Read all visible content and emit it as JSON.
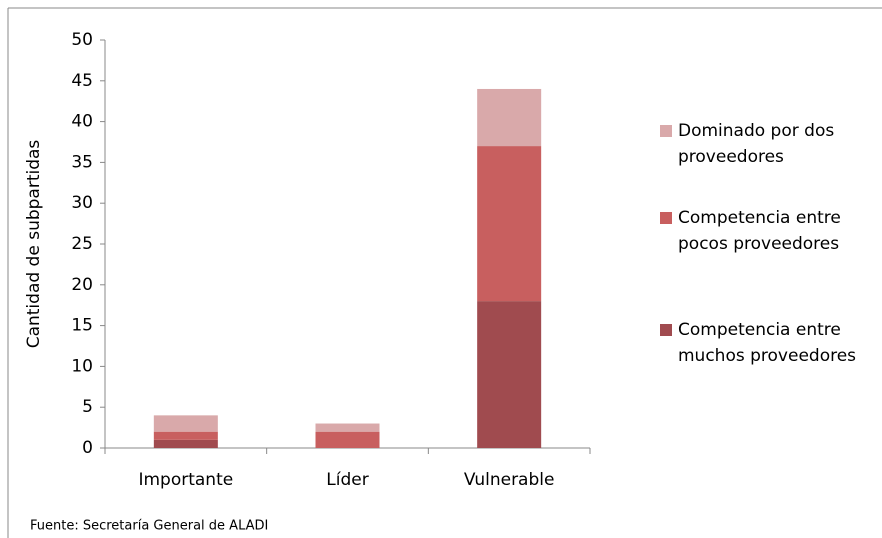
{
  "chart_data": {
    "type": "stacked_bar",
    "y_axis_label": "Cantidad de subpartidas",
    "source": "Fuente: Secretaría General de ALADI",
    "categories": [
      "Importante",
      "Líder",
      "Vulnerable"
    ],
    "series": [
      {
        "name": "Competencia entre muchos proveedores",
        "color": "#a04b4f",
        "values": [
          1,
          0,
          18
        ]
      },
      {
        "name": "Competencia entre pocos proveedores",
        "color": "#c85f5f",
        "values": [
          1,
          2,
          19
        ]
      },
      {
        "name": "Dominado por dos proveedores",
        "color": "#d9a9aa",
        "values": [
          2,
          1,
          7
        ]
      }
    ],
    "ylim": [
      0,
      50
    ],
    "yticks": [
      0,
      5,
      10,
      15,
      20,
      25,
      30,
      35,
      40,
      45,
      50
    ],
    "grid": false,
    "legend": "right"
  }
}
